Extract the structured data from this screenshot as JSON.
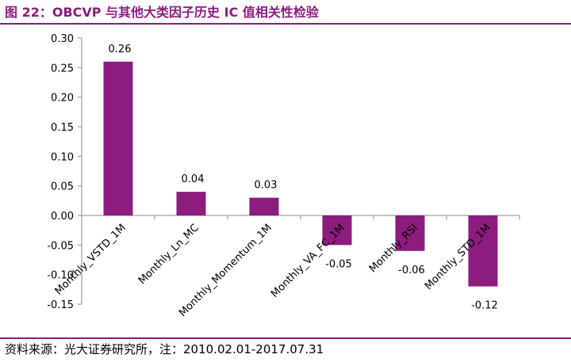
{
  "title": "图 22：OBCVP 与其他大类因子历史 IC 值相关性检验",
  "source": "资料来源：光大证券研究所，注：2010.02.01-2017.07.31",
  "colors": {
    "bar": "#8c1c7e",
    "accent": "#8c1c7e"
  },
  "chart_data": {
    "type": "bar",
    "categories": [
      "Monthly_VSTD_1M",
      "Monthly_Ln_MC",
      "Monthly_Momentum_1M",
      "Monthly_VA_FC_1M",
      "Monthly_RSI",
      "Monthly_STD_1M"
    ],
    "values": [
      0.26,
      0.04,
      0.03,
      -0.05,
      -0.06,
      -0.12
    ],
    "data_labels": [
      "0.26",
      "0.04",
      "0.03",
      "-0.05",
      "-0.06",
      "-0.12"
    ],
    "yticks": [
      "-0.15",
      "-0.10",
      "-0.05",
      "0.00",
      "0.05",
      "0.10",
      "0.15",
      "0.20",
      "0.25",
      "0.30"
    ],
    "ylim": [
      -0.15,
      0.3
    ],
    "grid": false,
    "legend": "none"
  }
}
